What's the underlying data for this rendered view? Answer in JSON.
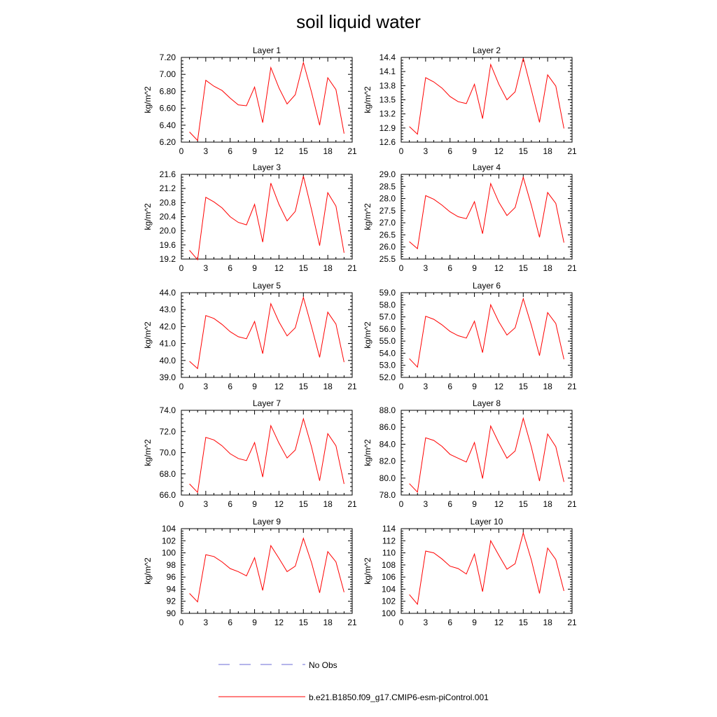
{
  "title": "soil liquid water",
  "legend": {
    "entries": [
      {
        "label": "No Obs",
        "color": "#6b6bd6",
        "dash": "dashed"
      },
      {
        "label": "b.e21.B1850.f09_g17.CMIP6-esm-piControl.001",
        "color": "#ff0000",
        "dash": "solid"
      }
    ]
  },
  "colors": {
    "series": "#ff0000",
    "no_obs": "#6b6bd6",
    "axis": "#000000"
  },
  "chart_data": [
    {
      "type": "line",
      "title": "Layer 1",
      "ylabel": "kg/m^2",
      "x": [
        1,
        2,
        3,
        4,
        5,
        6,
        7,
        8,
        9,
        10,
        11,
        12,
        13,
        14,
        15,
        16,
        17,
        18,
        19,
        20
      ],
      "series": [
        {
          "values": [
            6.32,
            6.22,
            6.93,
            6.86,
            6.81,
            6.72,
            6.64,
            6.63,
            6.85,
            6.43,
            7.08,
            6.84,
            6.65,
            6.76,
            7.14,
            6.79,
            6.4,
            6.96,
            6.82,
            6.3
          ]
        }
      ],
      "xlim": [
        0,
        21
      ],
      "ylim": [
        6.2,
        7.2
      ],
      "xticks": [
        "0",
        "3",
        "6",
        "9",
        "12",
        "15",
        "18",
        "21"
      ],
      "yticks": [
        "6.20",
        "6.40",
        "6.60",
        "6.80",
        "7.00",
        "7.20"
      ]
    },
    {
      "type": "line",
      "title": "Layer 2",
      "ylabel": "kg/m^2",
      "x": [
        1,
        2,
        3,
        4,
        5,
        6,
        7,
        8,
        9,
        10,
        11,
        12,
        13,
        14,
        15,
        16,
        17,
        18,
        19,
        20
      ],
      "series": [
        {
          "values": [
            12.93,
            12.77,
            13.97,
            13.88,
            13.75,
            13.57,
            13.46,
            13.42,
            13.83,
            13.1,
            14.25,
            13.83,
            13.5,
            13.67,
            14.38,
            13.71,
            13.02,
            14.03,
            13.79,
            12.89
          ]
        }
      ],
      "xlim": [
        0,
        21
      ],
      "ylim": [
        12.6,
        14.4
      ],
      "xticks": [
        "0",
        "3",
        "6",
        "9",
        "12",
        "15",
        "18",
        "21"
      ],
      "yticks": [
        "12.6",
        "12.9",
        "13.2",
        "13.5",
        "13.8",
        "14.1",
        "14.4"
      ]
    },
    {
      "type": "line",
      "title": "Layer 3",
      "ylabel": "kg/m^2",
      "x": [
        1,
        2,
        3,
        4,
        5,
        6,
        7,
        8,
        9,
        10,
        11,
        12,
        13,
        14,
        15,
        16,
        17,
        18,
        19,
        20
      ],
      "series": [
        {
          "values": [
            19.45,
            19.18,
            20.95,
            20.82,
            20.65,
            20.4,
            20.24,
            20.17,
            20.75,
            19.68,
            21.35,
            20.75,
            20.28,
            20.55,
            21.55,
            20.6,
            19.58,
            21.08,
            20.7,
            19.38
          ]
        }
      ],
      "xlim": [
        0,
        21
      ],
      "ylim": [
        19.2,
        21.6
      ],
      "xticks": [
        "0",
        "3",
        "6",
        "9",
        "12",
        "15",
        "18",
        "21"
      ],
      "yticks": [
        "19.2",
        "19.6",
        "20.0",
        "20.4",
        "20.8",
        "21.2",
        "21.6"
      ]
    },
    {
      "type": "line",
      "title": "Layer 4",
      "ylabel": "kg/m^2",
      "x": [
        1,
        2,
        3,
        4,
        5,
        6,
        7,
        8,
        9,
        10,
        11,
        12,
        13,
        14,
        15,
        16,
        17,
        18,
        19,
        20
      ],
      "series": [
        {
          "values": [
            26.22,
            25.93,
            28.12,
            27.97,
            27.73,
            27.45,
            27.25,
            27.17,
            27.87,
            26.55,
            28.62,
            27.85,
            27.3,
            27.63,
            28.88,
            27.72,
            26.4,
            28.25,
            27.8,
            26.18
          ]
        }
      ],
      "xlim": [
        0,
        21
      ],
      "ylim": [
        25.5,
        29.0
      ],
      "xticks": [
        "0",
        "3",
        "6",
        "9",
        "12",
        "15",
        "18",
        "21"
      ],
      "yticks": [
        "25.5",
        "26.0",
        "26.5",
        "27.0",
        "27.5",
        "28.0",
        "28.5",
        "29.0"
      ]
    },
    {
      "type": "line",
      "title": "Layer 5",
      "ylabel": "kg/m^2",
      "x": [
        1,
        2,
        3,
        4,
        5,
        6,
        7,
        8,
        9,
        10,
        11,
        12,
        13,
        14,
        15,
        16,
        17,
        18,
        19,
        20
      ],
      "series": [
        {
          "values": [
            39.95,
            39.52,
            42.65,
            42.48,
            42.13,
            41.7,
            41.4,
            41.28,
            42.3,
            40.4,
            43.35,
            42.28,
            41.45,
            41.93,
            43.72,
            42.0,
            40.18,
            42.85,
            42.15,
            39.9
          ]
        }
      ],
      "xlim": [
        0,
        21
      ],
      "ylim": [
        39.0,
        44.0
      ],
      "xticks": [
        "0",
        "3",
        "6",
        "9",
        "12",
        "15",
        "18",
        "21"
      ],
      "yticks": [
        "39.0",
        "40.0",
        "41.0",
        "42.0",
        "43.0",
        "44.0"
      ]
    },
    {
      "type": "line",
      "title": "Layer 6",
      "ylabel": "kg/m^2",
      "x": [
        1,
        2,
        3,
        4,
        5,
        6,
        7,
        8,
        9,
        10,
        11,
        12,
        13,
        14,
        15,
        16,
        17,
        18,
        19,
        20
      ],
      "series": [
        {
          "values": [
            53.55,
            52.85,
            57.05,
            56.8,
            56.35,
            55.8,
            55.45,
            55.25,
            56.65,
            54.05,
            58.0,
            56.6,
            55.5,
            56.1,
            58.5,
            56.3,
            53.8,
            57.35,
            56.45,
            53.5
          ]
        }
      ],
      "xlim": [
        0,
        21
      ],
      "ylim": [
        52.0,
        59.0
      ],
      "xticks": [
        "0",
        "3",
        "6",
        "9",
        "12",
        "15",
        "18",
        "21"
      ],
      "yticks": [
        "52.0",
        "53.0",
        "54.0",
        "55.0",
        "56.0",
        "57.0",
        "58.0",
        "59.0"
      ]
    },
    {
      "type": "line",
      "title": "Layer 7",
      "ylabel": "kg/m^2",
      "x": [
        1,
        2,
        3,
        4,
        5,
        6,
        7,
        8,
        9,
        10,
        11,
        12,
        13,
        14,
        15,
        16,
        17,
        18,
        19,
        20
      ],
      "series": [
        {
          "values": [
            67.05,
            66.25,
            71.45,
            71.2,
            70.65,
            69.9,
            69.45,
            69.25,
            70.95,
            67.7,
            72.55,
            70.9,
            69.5,
            70.25,
            73.2,
            70.55,
            67.35,
            71.8,
            70.65,
            67.05
          ]
        }
      ],
      "xlim": [
        0,
        21
      ],
      "ylim": [
        66.0,
        74.0
      ],
      "xticks": [
        "0",
        "3",
        "6",
        "9",
        "12",
        "15",
        "18",
        "21"
      ],
      "yticks": [
        "66.0",
        "68.0",
        "70.0",
        "72.0",
        "74.0"
      ]
    },
    {
      "type": "line",
      "title": "Layer 8",
      "ylabel": "kg/m^2",
      "x": [
        1,
        2,
        3,
        4,
        5,
        6,
        7,
        8,
        9,
        10,
        11,
        12,
        13,
        14,
        15,
        16,
        17,
        18,
        19,
        20
      ],
      "series": [
        {
          "values": [
            79.35,
            78.35,
            84.75,
            84.45,
            83.75,
            82.8,
            82.35,
            81.9,
            84.2,
            79.95,
            86.15,
            84.15,
            82.35,
            83.2,
            87.05,
            83.65,
            79.65,
            85.2,
            83.7,
            79.55
          ]
        }
      ],
      "xlim": [
        0,
        21
      ],
      "ylim": [
        78.0,
        88.0
      ],
      "xticks": [
        "0",
        "3",
        "6",
        "9",
        "12",
        "15",
        "18",
        "21"
      ],
      "yticks": [
        "78.0",
        "80.0",
        "82.0",
        "84.0",
        "86.0",
        "88.0"
      ]
    },
    {
      "type": "line",
      "title": "Layer 9",
      "ylabel": "kg/m^2",
      "x": [
        1,
        2,
        3,
        4,
        5,
        6,
        7,
        8,
        9,
        10,
        11,
        12,
        13,
        14,
        15,
        16,
        17,
        18,
        19,
        20
      ],
      "series": [
        {
          "values": [
            93.3,
            91.9,
            99.7,
            99.4,
            98.5,
            97.4,
            96.9,
            96.2,
            99.2,
            93.8,
            101.2,
            99.1,
            96.9,
            97.8,
            102.4,
            98.4,
            93.4,
            100.2,
            98.5,
            93.5
          ]
        }
      ],
      "xlim": [
        0,
        21
      ],
      "ylim": [
        90,
        104
      ],
      "xticks": [
        "0",
        "3",
        "6",
        "9",
        "12",
        "15",
        "18",
        "21"
      ],
      "yticks": [
        "90",
        "92",
        "94",
        "96",
        "98",
        "100",
        "102",
        "104"
      ]
    },
    {
      "type": "line",
      "title": "Layer 10",
      "ylabel": "kg/m^2",
      "x": [
        1,
        2,
        3,
        4,
        5,
        6,
        7,
        8,
        9,
        10,
        11,
        12,
        13,
        14,
        15,
        16,
        17,
        18,
        19,
        20
      ],
      "series": [
        {
          "values": [
            103.1,
            101.5,
            110.3,
            110.0,
            109.0,
            107.8,
            107.4,
            106.5,
            109.8,
            103.6,
            112.0,
            109.6,
            107.3,
            108.2,
            113.3,
            108.8,
            103.3,
            110.8,
            108.9,
            103.7
          ]
        }
      ],
      "xlim": [
        0,
        21
      ],
      "ylim": [
        100,
        114
      ],
      "xticks": [
        "0",
        "3",
        "6",
        "9",
        "12",
        "15",
        "18",
        "21"
      ],
      "yticks": [
        "100",
        "102",
        "104",
        "106",
        "108",
        "110",
        "112",
        "114"
      ]
    }
  ]
}
